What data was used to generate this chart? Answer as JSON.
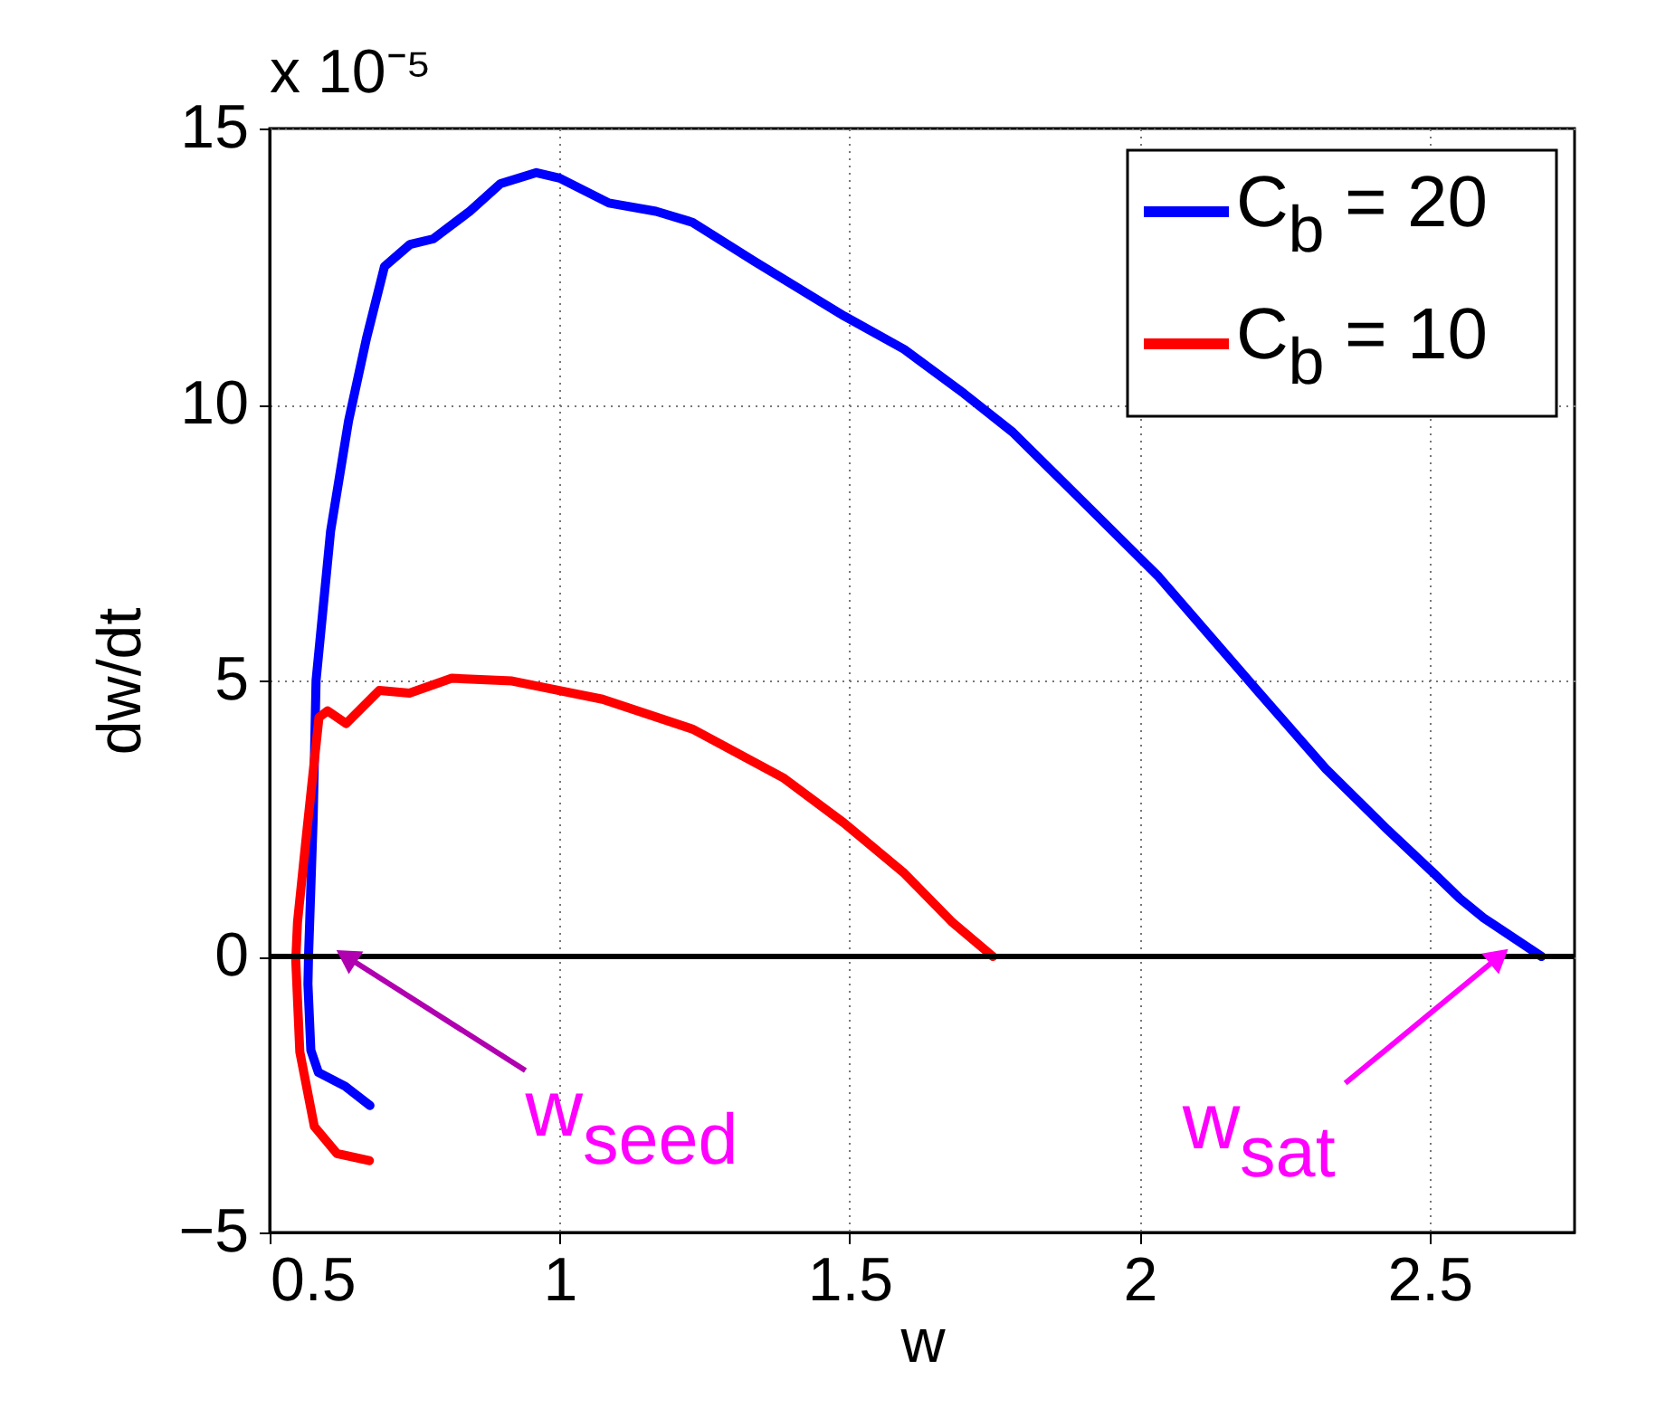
{
  "chart_data": {
    "type": "line",
    "xlabel": "w",
    "ylabel": "dw/dt",
    "xlim": [
      0.5,
      2.75
    ],
    "ylim": [
      -5,
      15
    ],
    "xticks": [
      0.5,
      1,
      1.5,
      2,
      2.5
    ],
    "yticks": [
      -5,
      0,
      5,
      10,
      15
    ],
    "grid": true,
    "legend": "top right",
    "line_style": "solid",
    "marker": "none",
    "series": [
      {
        "name": "C$_{b}$ = 20",
        "color": "#0000ff",
        "x": [
          0.673,
          0.63,
          0.584,
          0.571,
          0.566,
          0.567,
          0.575,
          0.58,
          0.605,
          0.636,
          0.667,
          0.698,
          0.742,
          0.782,
          0.845,
          0.898,
          0.96,
          1.0,
          1.085,
          1.166,
          1.229,
          1.335,
          1.491,
          1.594,
          1.697,
          1.781,
          1.906,
          2.031,
          2.196,
          2.321,
          2.427,
          2.508,
          2.552,
          2.593,
          2.693
        ],
        "values": [
          -2.7,
          -2.35,
          -2.1,
          -1.7,
          -0.5,
          0,
          2.5,
          5.0,
          7.7,
          9.7,
          11.2,
          12.5,
          12.9,
          13.0,
          13.5,
          14.0,
          14.2,
          14.1,
          13.65,
          13.5,
          13.3,
          12.6,
          11.6,
          11.0,
          10.2,
          9.5,
          8.2,
          6.9,
          4.9,
          3.4,
          2.3,
          1.5,
          1.05,
          0.7,
          0
        ]
      },
      {
        "name": "C$_{b}$ = 10",
        "color": "#ff0000",
        "x": [
          0.672,
          0.616,
          0.577,
          0.552,
          0.545,
          0.548,
          0.564,
          0.585,
          0.6,
          0.632,
          0.689,
          0.741,
          0.814,
          0.918,
          1.074,
          1.229,
          1.385,
          1.49,
          1.594,
          1.677,
          1.747
        ],
        "values": [
          -3.7,
          -3.57,
          -3.08,
          -1.73,
          -0.07,
          0.62,
          2.26,
          4.33,
          4.45,
          4.22,
          4.82,
          4.77,
          5.04,
          4.99,
          4.66,
          4.12,
          3.24,
          2.42,
          1.51,
          0.62,
          0
        ]
      }
    ],
    "ref_lines": [
      {
        "axis": "y",
        "value": 0,
        "color": "#000000"
      }
    ],
    "annotations": [
      "x 10⁻⁵",
      {
        "text": "w$_{seed}$",
        "x": 0.632,
        "y": 0
      },
      {
        "text": "w$_{sat}$",
        "x": 2.62,
        "y": 0
      }
    ]
  }
}
